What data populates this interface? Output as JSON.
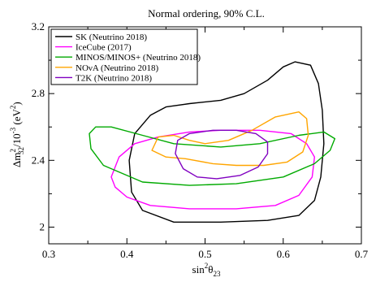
{
  "chart_data": {
    "type": "line",
    "title": "Normal ordering, 90% C.L.",
    "xlabel_parts": [
      "sin",
      "2",
      "θ",
      "23"
    ],
    "ylabel_parts": [
      "Δm",
      "2",
      "32",
      "/10",
      "-3",
      "  (eV",
      "2",
      ")"
    ],
    "xlim": [
      0.3,
      0.7
    ],
    "ylim": [
      1.9,
      3.2
    ],
    "xticks": [
      0.3,
      0.4,
      0.5,
      0.6,
      0.7
    ],
    "xtick_labels": [
      "0.3",
      "0.4",
      "0.5",
      "0.6",
      "0.7"
    ],
    "yticks": [
      2.0,
      2.4,
      2.8,
      3.2
    ],
    "ytick_labels": [
      "2",
      "2.4",
      "2.8",
      "3.2"
    ],
    "grid": false,
    "legend_position": "top-left",
    "series": [
      {
        "name": "SK (Neutrino 2018)",
        "color": "#000000",
        "points": [
          [
            0.406,
            2.21
          ],
          [
            0.403,
            2.4
          ],
          [
            0.41,
            2.56
          ],
          [
            0.43,
            2.67
          ],
          [
            0.45,
            2.72
          ],
          [
            0.48,
            2.74
          ],
          [
            0.52,
            2.76
          ],
          [
            0.55,
            2.8
          ],
          [
            0.58,
            2.88
          ],
          [
            0.6,
            2.96
          ],
          [
            0.615,
            2.99
          ],
          [
            0.635,
            2.97
          ],
          [
            0.645,
            2.86
          ],
          [
            0.65,
            2.7
          ],
          [
            0.652,
            2.5
          ],
          [
            0.648,
            2.3
          ],
          [
            0.64,
            2.16
          ],
          [
            0.62,
            2.07
          ],
          [
            0.58,
            2.04
          ],
          [
            0.52,
            2.03
          ],
          [
            0.46,
            2.03
          ],
          [
            0.42,
            2.1
          ],
          [
            0.406,
            2.21
          ]
        ]
      },
      {
        "name": "IceCube (2017)",
        "color": "#ff00ff",
        "points": [
          [
            0.38,
            2.3
          ],
          [
            0.39,
            2.42
          ],
          [
            0.41,
            2.5
          ],
          [
            0.44,
            2.54
          ],
          [
            0.48,
            2.57
          ],
          [
            0.52,
            2.58
          ],
          [
            0.57,
            2.58
          ],
          [
            0.61,
            2.56
          ],
          [
            0.63,
            2.5
          ],
          [
            0.64,
            2.42
          ],
          [
            0.637,
            2.3
          ],
          [
            0.62,
            2.19
          ],
          [
            0.59,
            2.13
          ],
          [
            0.54,
            2.11
          ],
          [
            0.48,
            2.11
          ],
          [
            0.43,
            2.13
          ],
          [
            0.4,
            2.18
          ],
          [
            0.385,
            2.24
          ],
          [
            0.38,
            2.3
          ]
        ]
      },
      {
        "name": "MINOS/MINOS+ (Neutrino 2018)",
        "color": "#00aa00",
        "points": [
          [
            0.352,
            2.56
          ],
          [
            0.36,
            2.6
          ],
          [
            0.38,
            2.6
          ],
          [
            0.42,
            2.55
          ],
          [
            0.46,
            2.5
          ],
          [
            0.52,
            2.48
          ],
          [
            0.57,
            2.5
          ],
          [
            0.62,
            2.55
          ],
          [
            0.652,
            2.57
          ],
          [
            0.666,
            2.53
          ],
          [
            0.66,
            2.46
          ],
          [
            0.64,
            2.38
          ],
          [
            0.6,
            2.3
          ],
          [
            0.54,
            2.26
          ],
          [
            0.48,
            2.25
          ],
          [
            0.42,
            2.27
          ],
          [
            0.37,
            2.37
          ],
          [
            0.354,
            2.47
          ],
          [
            0.352,
            2.56
          ]
        ]
      },
      {
        "name": "NOνA (Neutrino 2018)",
        "color": "#ffa500",
        "points": [
          [
            0.432,
            2.46
          ],
          [
            0.44,
            2.54
          ],
          [
            0.46,
            2.55
          ],
          [
            0.48,
            2.52
          ],
          [
            0.5,
            2.5
          ],
          [
            0.53,
            2.52
          ],
          [
            0.56,
            2.58
          ],
          [
            0.59,
            2.66
          ],
          [
            0.62,
            2.69
          ],
          [
            0.63,
            2.65
          ],
          [
            0.632,
            2.55
          ],
          [
            0.625,
            2.45
          ],
          [
            0.605,
            2.39
          ],
          [
            0.575,
            2.37
          ],
          [
            0.54,
            2.37
          ],
          [
            0.51,
            2.38
          ],
          [
            0.475,
            2.41
          ],
          [
            0.45,
            2.42
          ],
          [
            0.432,
            2.46
          ]
        ]
      },
      {
        "name": "T2K (Neutrino 2018)",
        "color": "#8000c0",
        "points": [
          [
            0.462,
            2.44
          ],
          [
            0.465,
            2.52
          ],
          [
            0.48,
            2.56
          ],
          [
            0.51,
            2.58
          ],
          [
            0.54,
            2.58
          ],
          [
            0.565,
            2.56
          ],
          [
            0.58,
            2.51
          ],
          [
            0.58,
            2.44
          ],
          [
            0.568,
            2.36
          ],
          [
            0.545,
            2.31
          ],
          [
            0.515,
            2.29
          ],
          [
            0.49,
            2.3
          ],
          [
            0.472,
            2.35
          ],
          [
            0.462,
            2.44
          ]
        ]
      }
    ]
  }
}
